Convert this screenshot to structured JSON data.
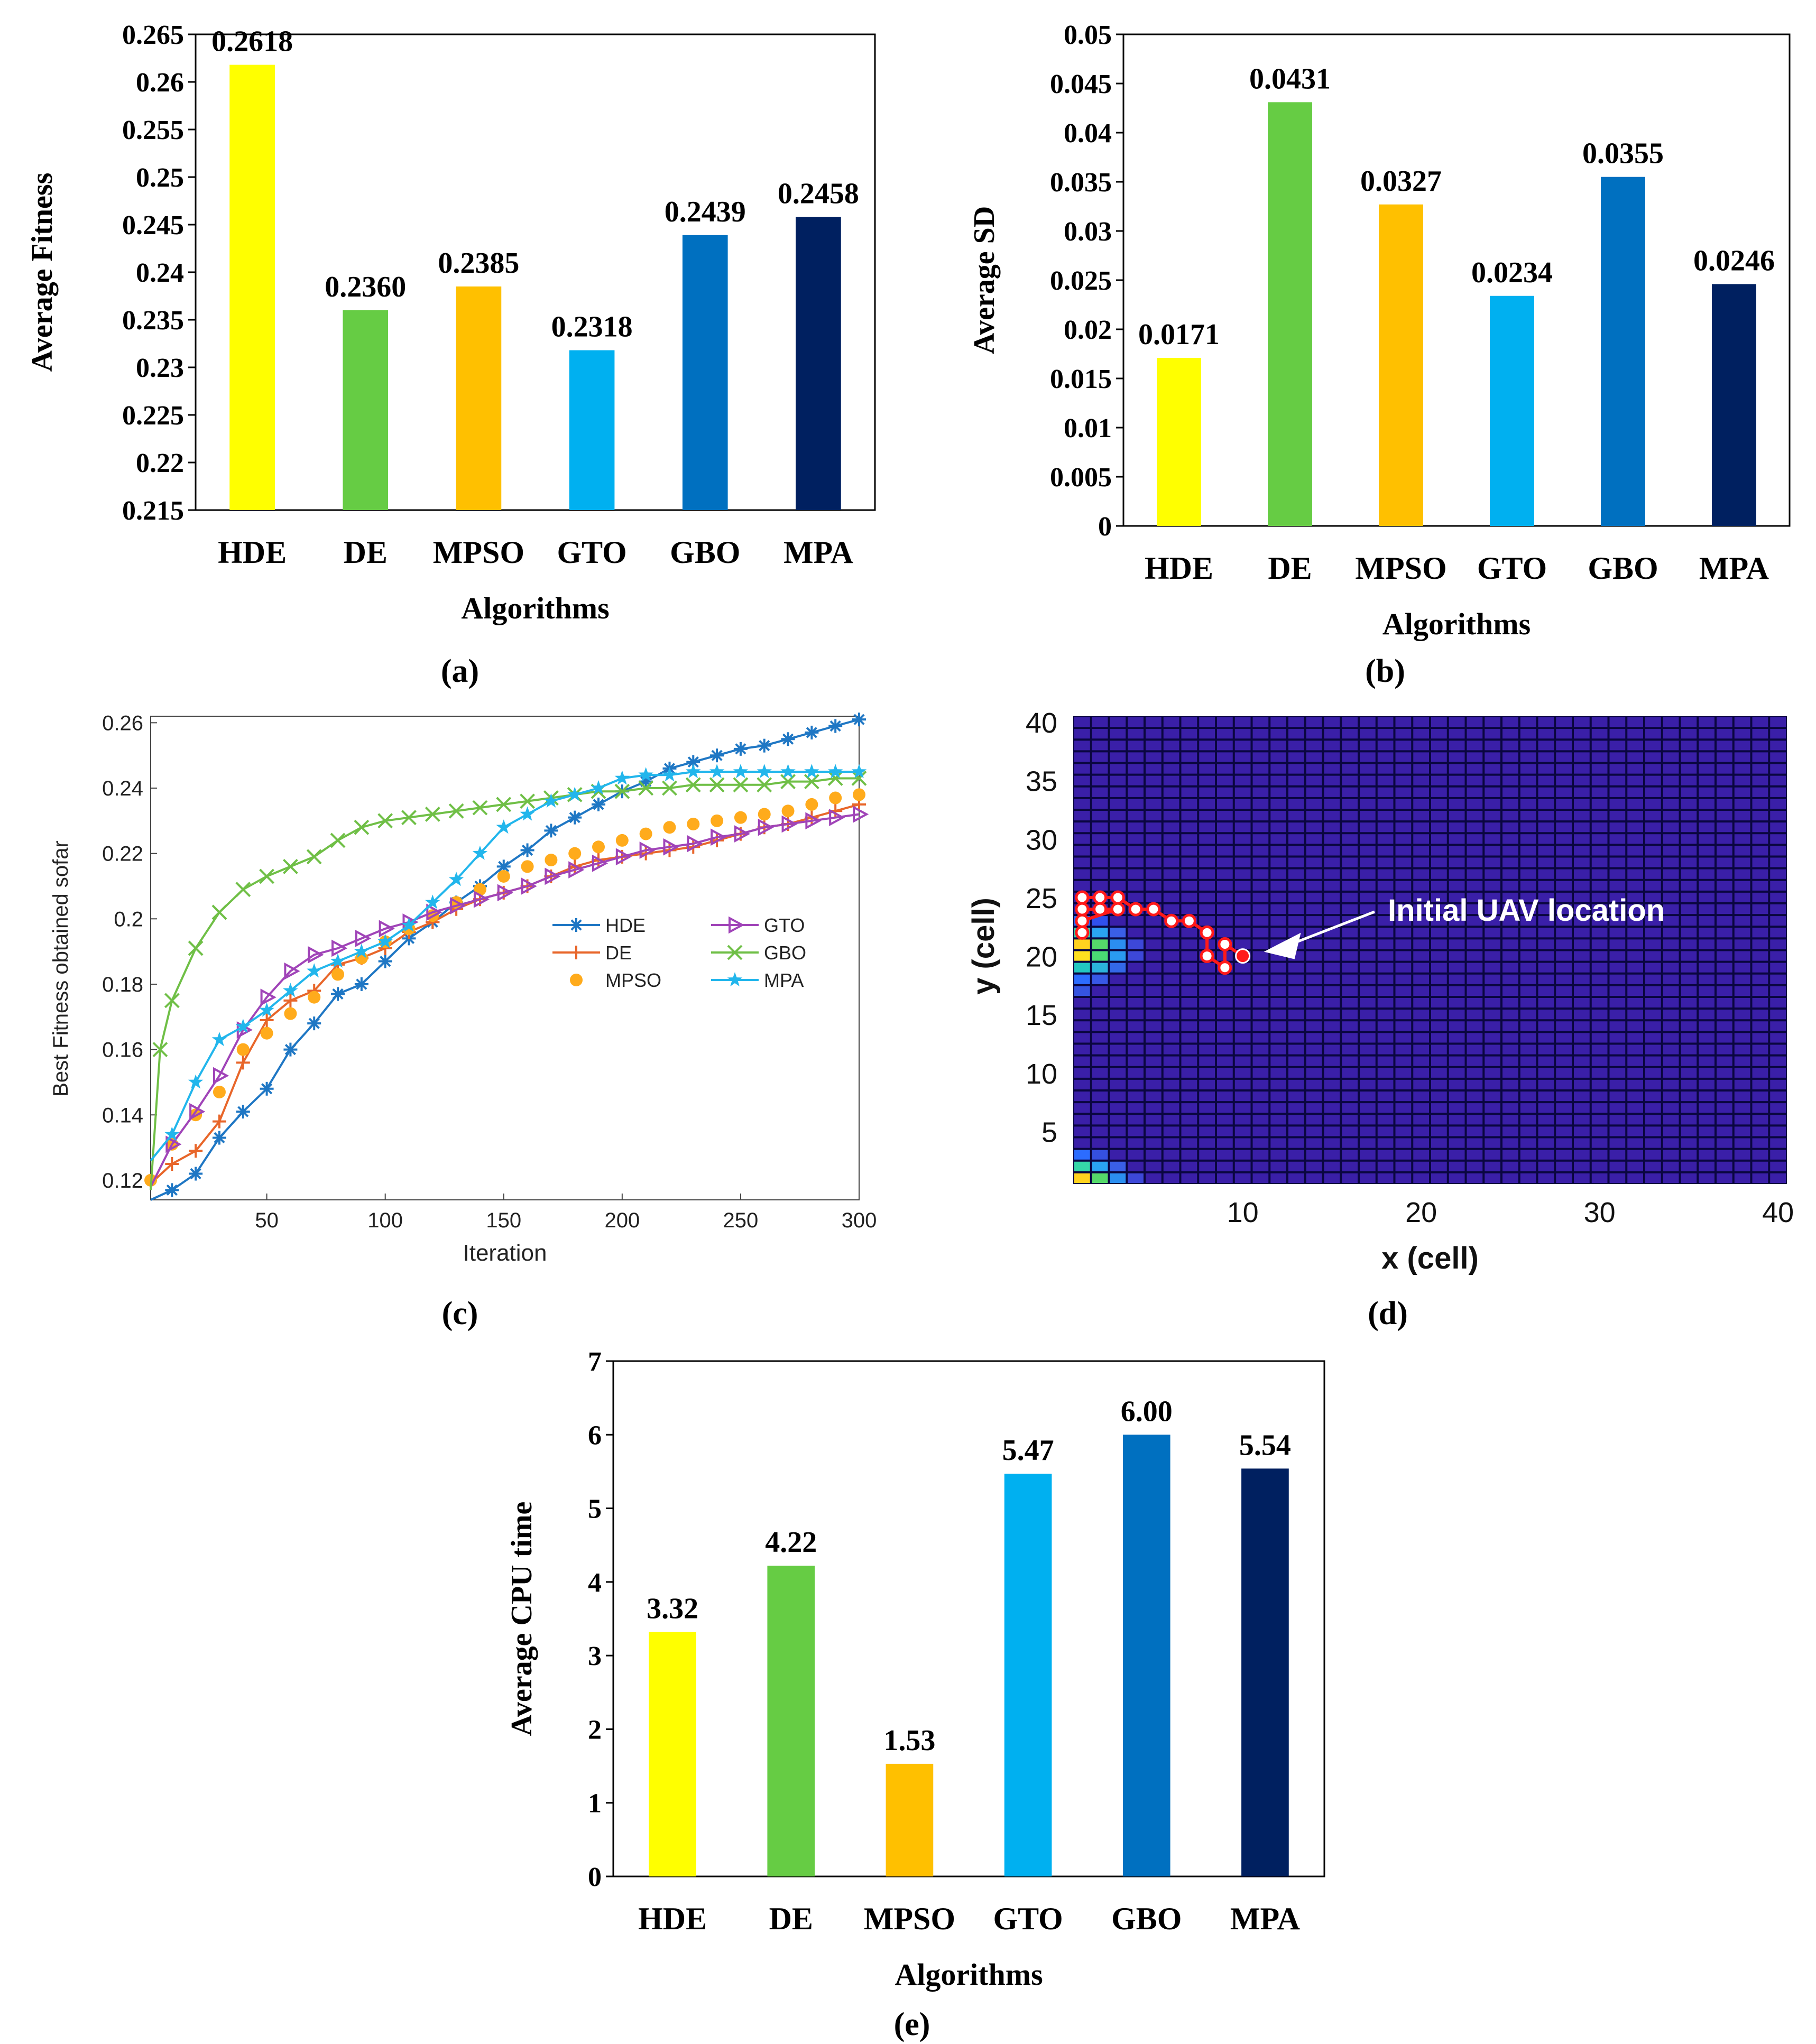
{
  "chart_data": [
    {
      "id": "a",
      "type": "bar",
      "panel_label": "(a)",
      "title": "",
      "xlabel": "Algorithms",
      "ylabel": "Average Fitness",
      "categories": [
        "HDE",
        "DE",
        "MPSO",
        "GTO",
        "GBO",
        "MPA"
      ],
      "values": [
        0.2618,
        0.236,
        0.2385,
        0.2318,
        0.2439,
        0.2458
      ],
      "value_labels": [
        "0.2618",
        "0.2360",
        "0.2385",
        "0.2318",
        "0.2439",
        "0.2458"
      ],
      "colors": [
        "#ffff00",
        "#66cc44",
        "#ffc000",
        "#00b0f0",
        "#0070c0",
        "#002060"
      ],
      "ylim": [
        0.215,
        0.265
      ],
      "yticks": [
        0.215,
        0.22,
        0.225,
        0.23,
        0.235,
        0.24,
        0.245,
        0.25,
        0.255,
        0.26,
        0.265
      ],
      "ytick_labels": [
        "0.215",
        "0.22",
        "0.225",
        "0.23",
        "0.235",
        "0.24",
        "0.245",
        "0.25",
        "0.255",
        "0.26",
        "0.265"
      ]
    },
    {
      "id": "b",
      "type": "bar",
      "panel_label": "(b)",
      "title": "",
      "xlabel": "Algorithms",
      "ylabel": "Average SD",
      "categories": [
        "HDE",
        "DE",
        "MPSO",
        "GTO",
        "GBO",
        "MPA"
      ],
      "values": [
        0.0171,
        0.0431,
        0.0327,
        0.0234,
        0.0355,
        0.0246
      ],
      "value_labels": [
        "0.0171",
        "0.0431",
        "0.0327",
        "0.0234",
        "0.0355",
        "0.0246"
      ],
      "colors": [
        "#ffff00",
        "#66cc44",
        "#ffc000",
        "#00b0f0",
        "#0070c0",
        "#002060"
      ],
      "ylim": [
        0,
        0.05
      ],
      "yticks": [
        0,
        0.005,
        0.01,
        0.015,
        0.02,
        0.025,
        0.03,
        0.035,
        0.04,
        0.045,
        0.05
      ],
      "ytick_labels": [
        "0",
        "0.005",
        "0.01",
        "0.015",
        "0.02",
        "0.025",
        "0.03",
        "0.035",
        "0.04",
        "0.045",
        "0.05"
      ]
    },
    {
      "id": "c",
      "type": "line",
      "panel_label": "(c)",
      "title": "",
      "xlabel": "Iteration",
      "ylabel": "Best Fitness obtained sofar",
      "xlim": [
        1,
        300
      ],
      "ylim": [
        0.114,
        0.262
      ],
      "xticks": [
        50,
        100,
        150,
        200,
        250,
        300
      ],
      "xtick_labels": [
        "50",
        "100",
        "150",
        "200",
        "250",
        "300"
      ],
      "yticks": [
        0.12,
        0.14,
        0.16,
        0.18,
        0.2,
        0.22,
        0.24,
        0.26
      ],
      "ytick_labels": [
        "0.12",
        "0.14",
        "0.16",
        "0.18",
        "0.2",
        "0.22",
        "0.24",
        "0.26"
      ],
      "series": [
        {
          "name": "HDE",
          "color": "#1f77c4",
          "marker": "asterisk",
          "x": [
            1,
            10,
            20,
            30,
            40,
            50,
            60,
            70,
            80,
            90,
            100,
            110,
            120,
            130,
            140,
            150,
            160,
            170,
            180,
            190,
            200,
            210,
            220,
            230,
            240,
            250,
            260,
            270,
            280,
            290,
            300
          ],
          "y": [
            0.114,
            0.117,
            0.122,
            0.133,
            0.141,
            0.148,
            0.16,
            0.168,
            0.177,
            0.18,
            0.187,
            0.194,
            0.199,
            0.205,
            0.21,
            0.216,
            0.221,
            0.227,
            0.231,
            0.235,
            0.239,
            0.242,
            0.246,
            0.248,
            0.25,
            0.252,
            0.253,
            0.255,
            0.257,
            0.259,
            0.261
          ]
        },
        {
          "name": "DE",
          "color": "#e8662a",
          "marker": "plus",
          "x": [
            1,
            10,
            20,
            30,
            40,
            50,
            60,
            70,
            80,
            90,
            100,
            110,
            120,
            130,
            140,
            150,
            160,
            170,
            180,
            190,
            200,
            210,
            220,
            230,
            240,
            250,
            260,
            270,
            280,
            290,
            300
          ],
          "y": [
            0.119,
            0.125,
            0.129,
            0.138,
            0.156,
            0.169,
            0.175,
            0.178,
            0.186,
            0.188,
            0.191,
            0.196,
            0.199,
            0.203,
            0.206,
            0.208,
            0.21,
            0.213,
            0.216,
            0.218,
            0.219,
            0.22,
            0.221,
            0.222,
            0.224,
            0.226,
            0.228,
            0.229,
            0.231,
            0.233,
            0.235
          ]
        },
        {
          "name": "MPSO",
          "color": "#ffab1c",
          "marker": "dot",
          "x": [
            1,
            10,
            20,
            30,
            40,
            50,
            60,
            70,
            80,
            90,
            100,
            110,
            120,
            130,
            140,
            150,
            160,
            170,
            180,
            190,
            200,
            210,
            220,
            230,
            240,
            250,
            260,
            270,
            280,
            290,
            300
          ],
          "y": [
            0.12,
            0.131,
            0.14,
            0.147,
            0.16,
            0.165,
            0.171,
            0.176,
            0.183,
            0.188,
            0.193,
            0.197,
            0.201,
            0.205,
            0.209,
            0.213,
            0.216,
            0.218,
            0.22,
            0.222,
            0.224,
            0.226,
            0.228,
            0.229,
            0.23,
            0.231,
            0.232,
            0.233,
            0.235,
            0.237,
            0.238
          ]
        },
        {
          "name": "GTO",
          "color": "#a044b8",
          "marker": "triangle",
          "x": [
            1,
            10,
            20,
            30,
            40,
            50,
            60,
            70,
            80,
            90,
            100,
            110,
            120,
            130,
            140,
            150,
            160,
            170,
            180,
            190,
            200,
            210,
            220,
            230,
            240,
            250,
            260,
            270,
            280,
            290,
            300
          ],
          "y": [
            0.118,
            0.131,
            0.141,
            0.152,
            0.166,
            0.176,
            0.184,
            0.189,
            0.191,
            0.194,
            0.197,
            0.199,
            0.202,
            0.204,
            0.206,
            0.208,
            0.21,
            0.213,
            0.215,
            0.217,
            0.219,
            0.221,
            0.222,
            0.223,
            0.225,
            0.226,
            0.228,
            0.229,
            0.23,
            0.231,
            0.232
          ]
        },
        {
          "name": "GBO",
          "color": "#6fbf46",
          "marker": "cross",
          "x": [
            1,
            5,
            10,
            20,
            30,
            40,
            50,
            60,
            70,
            80,
            90,
            100,
            110,
            120,
            130,
            140,
            150,
            160,
            170,
            180,
            190,
            200,
            210,
            220,
            230,
            240,
            250,
            260,
            270,
            280,
            290,
            300
          ],
          "y": [
            0.117,
            0.16,
            0.175,
            0.191,
            0.202,
            0.209,
            0.213,
            0.216,
            0.219,
            0.224,
            0.228,
            0.23,
            0.231,
            0.232,
            0.233,
            0.234,
            0.235,
            0.236,
            0.237,
            0.238,
            0.239,
            0.239,
            0.24,
            0.24,
            0.241,
            0.241,
            0.241,
            0.241,
            0.242,
            0.242,
            0.243,
            0.243
          ]
        },
        {
          "name": "MPA",
          "color": "#22b6ec",
          "marker": "star",
          "x": [
            1,
            10,
            20,
            30,
            40,
            50,
            60,
            70,
            80,
            90,
            100,
            110,
            120,
            130,
            140,
            150,
            160,
            170,
            180,
            190,
            200,
            210,
            220,
            230,
            240,
            250,
            260,
            270,
            280,
            290,
            300
          ],
          "y": [
            0.126,
            0.134,
            0.15,
            0.163,
            0.167,
            0.172,
            0.178,
            0.184,
            0.187,
            0.19,
            0.193,
            0.198,
            0.205,
            0.212,
            0.22,
            0.228,
            0.232,
            0.236,
            0.238,
            0.24,
            0.243,
            0.244,
            0.244,
            0.245,
            0.245,
            0.245,
            0.245,
            0.245,
            0.245,
            0.245,
            0.245
          ]
        }
      ]
    },
    {
      "id": "d",
      "type": "heatmap",
      "panel_label": "(d)",
      "title": "",
      "xlabel": "x (cell)",
      "ylabel": "y (cell)",
      "grid_size": [
        40,
        40
      ],
      "xlim": [
        1,
        40
      ],
      "ylim": [
        1,
        40
      ],
      "xticks": [
        10,
        20,
        30,
        40
      ],
      "xtick_labels": [
        "10",
        "20",
        "30",
        "40"
      ],
      "yticks": [
        5,
        10,
        15,
        20,
        25,
        30,
        35,
        40
      ],
      "ytick_labels": [
        "5",
        "10",
        "15",
        "20",
        "25",
        "30",
        "35",
        "40"
      ],
      "background_color": "#3a1fa8",
      "hot_cells": [
        {
          "x": 1,
          "y": 23,
          "color": "#2c6cff"
        },
        {
          "x": 2,
          "y": 23,
          "color": "#3050ee"
        },
        {
          "x": 1,
          "y": 22,
          "color": "#35d6a8"
        },
        {
          "x": 2,
          "y": 22,
          "color": "#2aa4f2"
        },
        {
          "x": 3,
          "y": 22,
          "color": "#3a5fe6"
        },
        {
          "x": 1,
          "y": 21,
          "color": "#ffd21f"
        },
        {
          "x": 2,
          "y": 21,
          "color": "#55d96a"
        },
        {
          "x": 3,
          "y": 21,
          "color": "#2b8ef0"
        },
        {
          "x": 4,
          "y": 21,
          "color": "#3d48d8"
        },
        {
          "x": 1,
          "y": 20,
          "color": "#ffe020"
        },
        {
          "x": 2,
          "y": 20,
          "color": "#4ad874"
        },
        {
          "x": 3,
          "y": 20,
          "color": "#2a9af0"
        },
        {
          "x": 4,
          "y": 20,
          "color": "#3d48d8"
        },
        {
          "x": 1,
          "y": 19,
          "color": "#22c7c0"
        },
        {
          "x": 2,
          "y": 19,
          "color": "#2bb2dc"
        },
        {
          "x": 3,
          "y": 19,
          "color": "#3368e8"
        },
        {
          "x": 1,
          "y": 18,
          "color": "#2c6cff"
        },
        {
          "x": 2,
          "y": 18,
          "color": "#3858e6"
        },
        {
          "x": 1,
          "y": 17,
          "color": "#3553e0"
        },
        {
          "x": 1,
          "y": 3,
          "color": "#2c6cff"
        },
        {
          "x": 2,
          "y": 3,
          "color": "#3550e0"
        },
        {
          "x": 1,
          "y": 2,
          "color": "#35d6a8"
        },
        {
          "x": 2,
          "y": 2,
          "color": "#2aa4f2"
        },
        {
          "x": 3,
          "y": 2,
          "color": "#3a5fe6"
        },
        {
          "x": 1,
          "y": 1,
          "color": "#ffd21f"
        },
        {
          "x": 2,
          "y": 1,
          "color": "#55d96a"
        },
        {
          "x": 3,
          "y": 1,
          "color": "#2b8ef0"
        },
        {
          "x": 4,
          "y": 1,
          "color": "#3d48d8"
        }
      ],
      "path_color": "#ff1a1a",
      "path": [
        {
          "x": 10.5,
          "y": 20.5
        },
        {
          "x": 9.5,
          "y": 21.5
        },
        {
          "x": 9.5,
          "y": 19.5
        },
        {
          "x": 8.5,
          "y": 20.5
        },
        {
          "x": 8.5,
          "y": 22.5
        },
        {
          "x": 7.5,
          "y": 23.5
        },
        {
          "x": 6.5,
          "y": 23.5
        },
        {
          "x": 5.5,
          "y": 24.5
        },
        {
          "x": 4.5,
          "y": 24.5
        },
        {
          "x": 3.5,
          "y": 25.5
        },
        {
          "x": 2.5,
          "y": 25.5
        },
        {
          "x": 1.5,
          "y": 25.5
        },
        {
          "x": 1.5,
          "y": 24.5
        },
        {
          "x": 2.5,
          "y": 24.5
        },
        {
          "x": 3.5,
          "y": 24.5
        },
        {
          "x": 1.5,
          "y": 23.5
        },
        {
          "x": 1.5,
          "y": 22.5
        }
      ],
      "annotation": "Initial UAV location",
      "annotation_target": {
        "x": 10.5,
        "y": 20.5
      }
    },
    {
      "id": "e",
      "type": "bar",
      "panel_label": "(e)",
      "title": "",
      "xlabel": "Algorithms",
      "ylabel": "Average CPU time",
      "categories": [
        "HDE",
        "DE",
        "MPSO",
        "GTO",
        "GBO",
        "MPA"
      ],
      "values": [
        3.32,
        4.22,
        1.53,
        5.47,
        6.0,
        5.54
      ],
      "value_labels": [
        "3.32",
        "4.22",
        "1.53",
        "5.47",
        "6.00",
        "5.54"
      ],
      "colors": [
        "#ffff00",
        "#66cc44",
        "#ffc000",
        "#00b0f0",
        "#0070c0",
        "#002060"
      ],
      "ylim": [
        0,
        7
      ],
      "yticks": [
        0,
        1,
        2,
        3,
        4,
        5,
        6,
        7
      ],
      "ytick_labels": [
        "0",
        "1",
        "2",
        "3",
        "4",
        "5",
        "6",
        "7"
      ]
    }
  ]
}
